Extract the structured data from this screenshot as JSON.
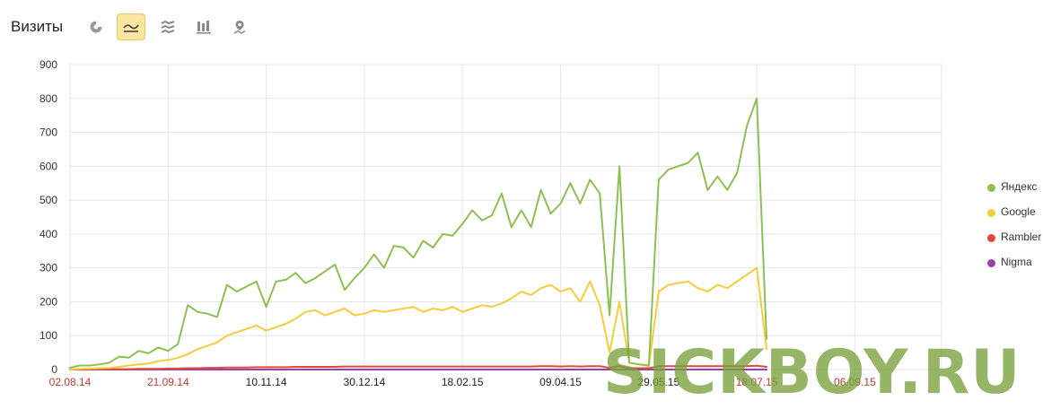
{
  "header": {
    "title": "Визиты",
    "tools": [
      {
        "icon": "pie-chart-icon",
        "active": false
      },
      {
        "icon": "line-chart-icon",
        "active": true
      },
      {
        "icon": "area-chart-icon",
        "active": false
      },
      {
        "icon": "bar-chart-icon",
        "active": false
      },
      {
        "icon": "map-pin-icon",
        "active": false
      }
    ]
  },
  "watermark": "SICKBOY.RU",
  "colors": {
    "yandex": "#8cc152",
    "google": "#f5cc3a",
    "rambler": "#e04a3a",
    "nigma": "#9b3fb0",
    "grid": "#e6e6e6",
    "weekend_tick": "#c0392b",
    "tick": "#222222"
  },
  "chart_data": {
    "type": "line",
    "title": "",
    "xlabel": "",
    "ylabel": "",
    "ylim": [
      0,
      900
    ],
    "yticks": [
      0,
      100,
      200,
      300,
      400,
      500,
      600,
      700,
      800,
      900
    ],
    "xticks": [
      {
        "label": "02.08.14",
        "weekend": true
      },
      {
        "label": "21.09.14",
        "weekend": true
      },
      {
        "label": "10.11.14",
        "weekend": false
      },
      {
        "label": "30.12.14",
        "weekend": false
      },
      {
        "label": "18.02.15",
        "weekend": false
      },
      {
        "label": "09.04.15",
        "weekend": false
      },
      {
        "label": "29.05.15",
        "weekend": false
      },
      {
        "label": "18.07.15",
        "weekend": true
      },
      {
        "label": "06.09.15",
        "weekend": true
      }
    ],
    "x_step_days": 5,
    "grid": true,
    "legend_position": "right",
    "series": [
      {
        "name": "Яндекс",
        "color": "#8cc152",
        "values": [
          5,
          12,
          12,
          15,
          20,
          38,
          35,
          55,
          48,
          65,
          55,
          75,
          190,
          170,
          165,
          155,
          250,
          230,
          245,
          260,
          185,
          260,
          265,
          285,
          255,
          270,
          290,
          310,
          235,
          270,
          300,
          340,
          300,
          365,
          360,
          330,
          380,
          360,
          400,
          395,
          430,
          470,
          440,
          455,
          520,
          420,
          470,
          420,
          530,
          460,
          490,
          550,
          490,
          560,
          520,
          160,
          600,
          20,
          15,
          12,
          560,
          590,
          600,
          610,
          640,
          530,
          570,
          530,
          580,
          720,
          800,
          90
        ]
      },
      {
        "name": "Google",
        "color": "#f5cc3a",
        "values": [
          0,
          2,
          3,
          4,
          5,
          8,
          12,
          15,
          18,
          25,
          28,
          35,
          45,
          60,
          70,
          80,
          100,
          110,
          120,
          130,
          115,
          125,
          135,
          150,
          170,
          175,
          160,
          170,
          180,
          160,
          165,
          175,
          170,
          175,
          180,
          185,
          170,
          180,
          175,
          185,
          170,
          180,
          190,
          185,
          195,
          210,
          230,
          220,
          240,
          250,
          230,
          240,
          200,
          260,
          190,
          50,
          200,
          20,
          15,
          10,
          230,
          250,
          255,
          260,
          240,
          230,
          250,
          240,
          260,
          280,
          300,
          60
        ]
      },
      {
        "name": "Rambler",
        "color": "#e04a3a",
        "values": [
          0,
          0,
          0,
          1,
          1,
          1,
          1,
          2,
          2,
          2,
          3,
          3,
          4,
          4,
          5,
          5,
          6,
          6,
          6,
          7,
          7,
          7,
          7,
          8,
          8,
          8,
          8,
          8,
          9,
          9,
          9,
          9,
          9,
          9,
          9,
          9,
          9,
          9,
          9,
          9,
          9,
          9,
          9,
          9,
          9,
          9,
          9,
          9,
          10,
          10,
          9,
          10,
          9,
          10,
          10,
          5,
          10,
          4,
          4,
          4,
          10,
          10,
          10,
          10,
          10,
          10,
          10,
          10,
          10,
          10,
          11,
          8
        ]
      },
      {
        "name": "Nigma",
        "color": "#9b3fb0",
        "values": [
          0,
          0,
          0,
          0,
          0,
          0,
          0,
          0,
          0,
          0,
          0,
          0,
          0,
          0,
          0,
          0,
          0,
          0,
          0,
          0,
          0,
          0,
          0,
          0,
          0,
          0,
          0,
          0,
          0,
          0,
          0,
          0,
          0,
          0,
          0,
          0,
          0,
          0,
          0,
          0,
          0,
          0,
          0,
          0,
          0,
          0,
          0,
          0,
          0,
          0,
          0,
          0,
          0,
          0,
          0,
          0,
          0,
          0,
          0,
          0,
          0,
          0,
          0,
          0,
          0,
          0,
          0,
          0,
          0,
          0,
          0,
          0
        ]
      }
    ]
  }
}
